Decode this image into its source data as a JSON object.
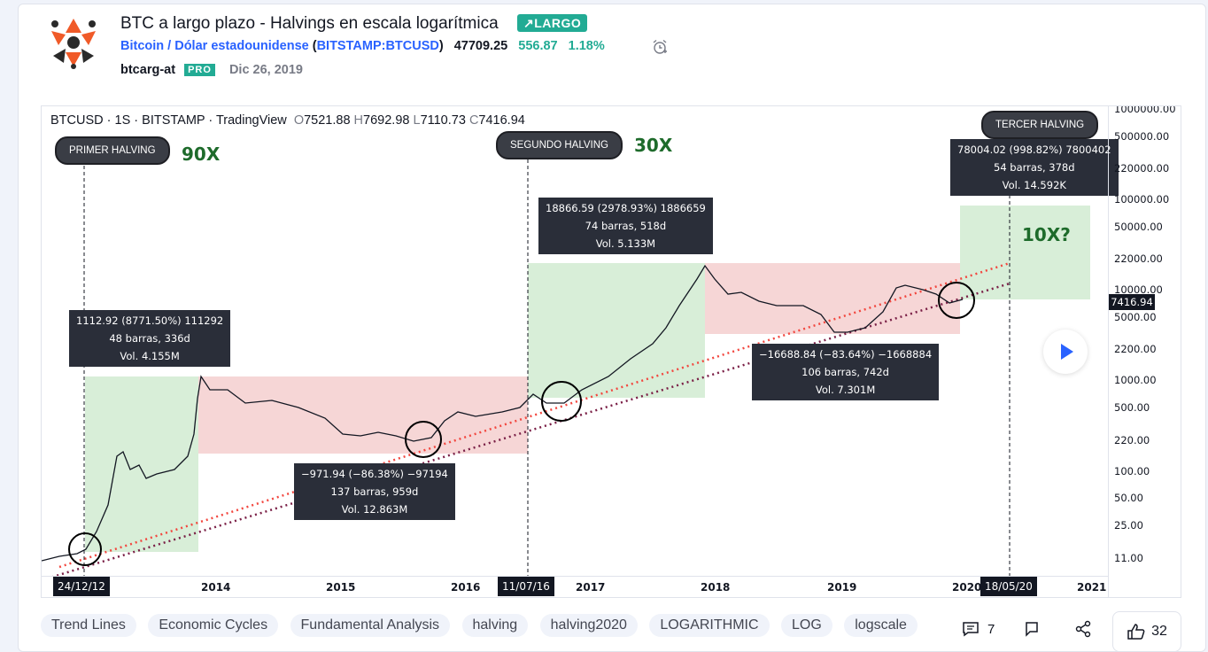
{
  "idea": {
    "title": "BTC a largo plazo - Halvings en escala logarítmica",
    "direction_badge": "↗LARGO",
    "symbol_name": "Bitcoin / Dólar estadounidense",
    "symbol_code": "BITSTAMP:BTCUSD",
    "price": "47709.25",
    "change": "556.87",
    "change_pct": "1.18%",
    "author": "btcarg-at",
    "author_badge": "PRO",
    "date": "Dic 26, 2019",
    "icons": {
      "logo": "author-logo-icon",
      "alarm": "alarm-clock-icon"
    }
  },
  "chart": {
    "legend": {
      "symbol": "BTCUSD",
      "interval": "1S",
      "exchange": "BITSTAMP",
      "source": "TradingView",
      "open_label": "O",
      "open": "7521.88",
      "high_label": "H",
      "high": "7692.98",
      "low_label": "L",
      "low": "7110.73",
      "close_label": "C",
      "close": "7416.94"
    },
    "callouts": [
      "PRIMER HALVING",
      "SEGUNDO HALVING",
      "TERCER HALVING"
    ],
    "multipliers": [
      "90X",
      "30X",
      "10X?"
    ],
    "info_boxes": [
      {
        "line1": "1112.92 (8771.50%) 111292",
        "line2": "48 barras, 336d",
        "line3": "Vol. 4.155M"
      },
      {
        "line1": "−971.94 (−86.38%) −97194",
        "line2": "137 barras, 959d",
        "line3": "Vol. 12.863M"
      },
      {
        "line1": "18866.59 (2978.93%) 1886659",
        "line2": "74 barras, 518d",
        "line3": "Vol. 5.133M"
      },
      {
        "line1": "−16688.84 (−83.64%) −1668884",
        "line2": "106 barras, 742d",
        "line3": "Vol. 7.301M"
      },
      {
        "line1": "78004.02 (998.82%) 7800402",
        "line2": "54 barras, 378d",
        "line3": "Vol. 14.592K"
      }
    ],
    "y_ticks": [
      "1000000.00",
      "500000.00",
      "220000.00",
      "100000.00",
      "50000.00",
      "22000.00",
      "10000.00",
      "5000.00",
      "2200.00",
      "1000.00",
      "500.00",
      "220.00",
      "100.00",
      "50.00",
      "25.00",
      "11.00"
    ],
    "current_price_label": "7416.94",
    "x_ticks": [
      "2014",
      "2015",
      "2016",
      "2017",
      "2018",
      "2019",
      "2020",
      "2021"
    ],
    "x_markers": [
      "24/12/12",
      "11/07/16",
      "18/05/20"
    ],
    "colors": {
      "up_zone": "#d8eed8",
      "down_zone": "#f6d6d6",
      "trend_red": "#f2473f",
      "trend_purple": "#7a1f46",
      "multiplier_text": "#1e6b2b",
      "badge": "#22ab94",
      "link": "#2962ff"
    },
    "play_icon": "play-icon"
  },
  "tags": [
    "Trend Lines",
    "Economic Cycles",
    "Fundamental Analysis",
    "halving",
    "halving2020",
    "LOGARITHMIC",
    "LOG",
    "logscale"
  ],
  "actions": {
    "comments_icon": "comment-icon",
    "comments_count": "7",
    "flag_icon": "flag-icon",
    "share_icon": "share-icon",
    "like_icon": "thumbs-up-icon",
    "likes_count": "32"
  }
}
